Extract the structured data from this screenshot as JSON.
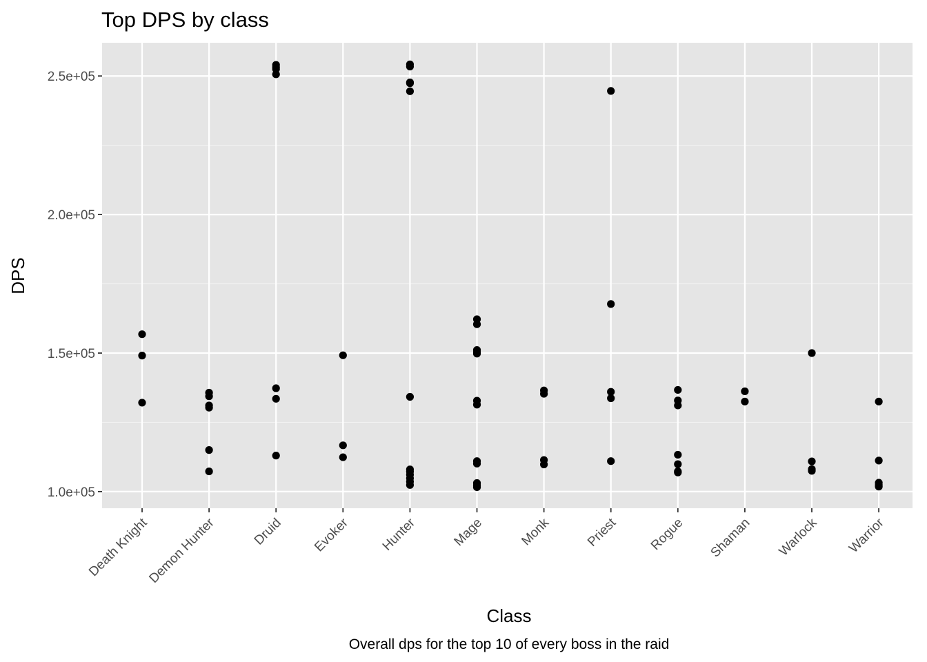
{
  "chart_data": {
    "type": "scatter",
    "title": "Top DPS by class",
    "xlabel": "Class",
    "ylabel": "DPS",
    "caption": "Overall dps for the top 10 of every boss in the raid",
    "categories": [
      "Death Knight",
      "Demon Hunter",
      "Druid",
      "Evoker",
      "Hunter",
      "Mage",
      "Monk",
      "Priest",
      "Rogue",
      "Shaman",
      "Warlock",
      "Warrior"
    ],
    "ylim": [
      94000,
      262000
    ],
    "yticks": [
      100000,
      150000,
      200000,
      250000
    ],
    "ytick_labels": [
      "1.0e+05",
      "1.5e+05",
      "2.0e+05",
      "2.5e+05"
    ],
    "grid": true,
    "background": "#e5e5e5",
    "point_color": "#000000",
    "series": [
      {
        "values": [
          [
            0,
            156800
          ],
          [
            0,
            149100
          ],
          [
            0,
            132100
          ],
          [
            1,
            135700
          ],
          [
            1,
            134400
          ],
          [
            1,
            131100
          ],
          [
            1,
            130300
          ],
          [
            1,
            115000
          ],
          [
            1,
            107300
          ],
          [
            2,
            254000
          ],
          [
            2,
            253200
          ],
          [
            2,
            252500
          ],
          [
            2,
            250600
          ],
          [
            2,
            137300
          ],
          [
            2,
            133500
          ],
          [
            2,
            113000
          ],
          [
            3,
            149200
          ],
          [
            3,
            116700
          ],
          [
            3,
            112400
          ],
          [
            4,
            254200
          ],
          [
            4,
            253400
          ],
          [
            4,
            247700
          ],
          [
            4,
            247400
          ],
          [
            4,
            244500
          ],
          [
            4,
            134200
          ],
          [
            4,
            108000
          ],
          [
            4,
            107200
          ],
          [
            4,
            106100
          ],
          [
            4,
            104800
          ],
          [
            4,
            103600
          ],
          [
            4,
            102400
          ],
          [
            5,
            162200
          ],
          [
            5,
            160400
          ],
          [
            5,
            151100
          ],
          [
            5,
            150300
          ],
          [
            5,
            149800
          ],
          [
            5,
            132800
          ],
          [
            5,
            131400
          ],
          [
            5,
            111000
          ],
          [
            5,
            110100
          ],
          [
            5,
            103100
          ],
          [
            5,
            102300
          ],
          [
            5,
            101600
          ],
          [
            6,
            136500
          ],
          [
            6,
            135300
          ],
          [
            6,
            111400
          ],
          [
            6,
            109800
          ],
          [
            7,
            244600
          ],
          [
            7,
            167700
          ],
          [
            7,
            136000
          ],
          [
            7,
            133700
          ],
          [
            7,
            111000
          ],
          [
            8,
            136700
          ],
          [
            8,
            132900
          ],
          [
            8,
            131100
          ],
          [
            8,
            113300
          ],
          [
            8,
            109900
          ],
          [
            8,
            107300
          ],
          [
            8,
            106900
          ],
          [
            9,
            136200
          ],
          [
            9,
            132500
          ],
          [
            10,
            150000
          ],
          [
            10,
            110900
          ],
          [
            10,
            108100
          ],
          [
            10,
            107500
          ],
          [
            11,
            132500
          ],
          [
            11,
            111200
          ],
          [
            11,
            103200
          ],
          [
            11,
            102400
          ],
          [
            11,
            101800
          ]
        ]
      }
    ]
  }
}
